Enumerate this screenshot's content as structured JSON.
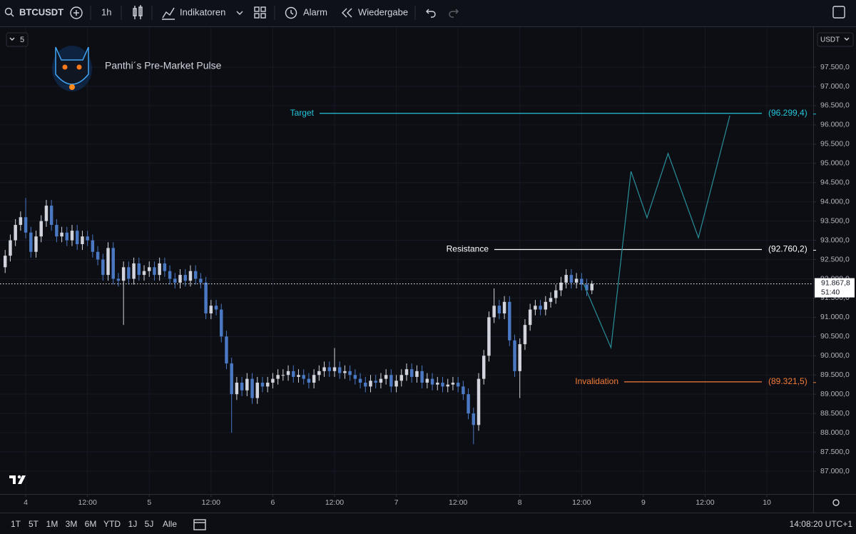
{
  "toolbar": {
    "symbol": "BTCUSDT",
    "interval": "1h",
    "indicators": "Indikatoren",
    "alert": "Alarm",
    "replay": "Wiedergabe"
  },
  "chart_header": {
    "interval_count": "5",
    "currency": "USDT"
  },
  "bottom_bar": {
    "ranges": [
      "1T",
      "5T",
      "1M",
      "3M",
      "6M",
      "YTD",
      "1J",
      "5J",
      "Alle"
    ],
    "clock": "14:08:20 UTC+1"
  },
  "chart_data": {
    "type": "candlestick",
    "title": "Panthi´s Pre-Market Pulse",
    "up_color": "#d1d4dc",
    "down_color": "#4a78c2",
    "grid": true,
    "x": [
      -4,
      -3,
      -2,
      -1,
      0,
      1,
      2,
      3,
      4,
      5,
      6,
      7,
      8,
      9,
      10,
      11,
      12,
      13,
      14,
      15,
      16,
      17,
      18,
      19,
      20,
      21,
      22,
      23,
      24,
      25,
      26,
      27,
      28,
      29,
      30,
      31,
      32,
      33,
      34,
      35,
      36,
      37,
      38,
      39,
      40,
      41,
      42,
      43,
      44,
      45,
      46,
      47,
      48,
      49,
      50,
      51,
      52,
      53,
      54,
      55,
      56,
      57,
      58,
      59,
      60,
      61,
      62,
      63,
      64,
      65,
      66,
      67,
      68,
      69,
      70,
      71,
      72,
      73,
      74,
      75,
      76,
      77,
      78,
      79,
      80,
      81,
      82,
      83,
      84,
      85,
      86,
      87,
      88,
      89,
      90,
      91,
      92,
      93,
      94,
      95,
      96,
      97,
      98,
      99,
      100,
      101,
      102,
      103,
      104,
      105,
      106,
      107,
      108,
      109,
      110
    ],
    "open": [
      92300,
      92600,
      93000,
      93400,
      93600,
      93200,
      92700,
      93100,
      93500,
      93900,
      93400,
      93100,
      93200,
      93000,
      93250,
      92900,
      93100,
      93000,
      92700,
      92500,
      92100,
      92800,
      92000,
      91950,
      92300,
      92000,
      92400,
      92100,
      92200,
      92300,
      92100,
      92400,
      92200,
      92000,
      91900,
      92100,
      91950,
      92200,
      92000,
      91900,
      91100,
      91300,
      91200,
      90500,
      89800,
      89000,
      89300,
      89100,
      89400,
      88900,
      89300,
      89200,
      89300,
      89400,
      89500,
      89500,
      89600,
      89450,
      89500,
      89400,
      89300,
      89500,
      89600,
      89700,
      89600,
      89700,
      89550,
      89600,
      89500,
      89400,
      89300,
      89200,
      89350,
      89300,
      89400,
      89500,
      89200,
      89350,
      89500,
      89650,
      89450,
      89600,
      89300,
      89400,
      89250,
      89300,
      89200,
      89250,
      89300,
      89200,
      89000,
      88500,
      88200,
      89400,
      90000,
      91000,
      91300,
      91100,
      91400,
      90400,
      89600,
      90300,
      90800,
      91200,
      91300,
      91200,
      91400,
      91500,
      91700,
      91900,
      92100,
      91900,
      92000,
      91850,
      91700
    ],
    "close": [
      92600,
      93000,
      93400,
      93600,
      93200,
      92700,
      93100,
      93500,
      93900,
      93400,
      93100,
      93200,
      93000,
      93250,
      92900,
      93100,
      93000,
      92700,
      92500,
      92100,
      92800,
      92000,
      91950,
      92300,
      92000,
      92400,
      92100,
      92200,
      92300,
      92100,
      92400,
      92200,
      92000,
      91900,
      92100,
      91950,
      92200,
      92000,
      91900,
      91100,
      91300,
      91200,
      90500,
      89800,
      89000,
      89300,
      89100,
      89400,
      88900,
      89300,
      89200,
      89300,
      89400,
      89500,
      89500,
      89600,
      89450,
      89500,
      89400,
      89300,
      89500,
      89600,
      89700,
      89600,
      89700,
      89550,
      89600,
      89500,
      89400,
      89300,
      89200,
      89350,
      89300,
      89400,
      89500,
      89200,
      89350,
      89500,
      89650,
      89450,
      89600,
      89300,
      89400,
      89250,
      89300,
      89200,
      89250,
      89300,
      89200,
      89000,
      88500,
      88200,
      89400,
      90000,
      91000,
      91300,
      91100,
      91400,
      90400,
      89600,
      90300,
      90800,
      91200,
      91300,
      91200,
      91400,
      91500,
      91700,
      91900,
      92100,
      91900,
      92000,
      91850,
      91700,
      91867.8
    ],
    "high": [
      92750,
      93150,
      93550,
      93750,
      94100,
      93350,
      93250,
      93650,
      94050,
      94050,
      93550,
      93350,
      93350,
      93400,
      93400,
      93250,
      93250,
      93150,
      92850,
      92650,
      92950,
      92950,
      92150,
      92450,
      92450,
      92550,
      92550,
      92350,
      92450,
      92450,
      92550,
      92550,
      92350,
      92150,
      92250,
      92250,
      92350,
      92350,
      92150,
      92050,
      91450,
      91450,
      91350,
      90650,
      89950,
      89450,
      89450,
      89550,
      89550,
      89450,
      89450,
      89450,
      89550,
      89650,
      89650,
      89750,
      89750,
      89650,
      89650,
      89550,
      89650,
      89750,
      89850,
      89850,
      90200,
      89850,
      89750,
      89750,
      89650,
      89550,
      89450,
      89500,
      89500,
      89550,
      89650,
      89650,
      89500,
      89650,
      89800,
      89800,
      89750,
      89750,
      89550,
      89550,
      89450,
      89450,
      89400,
      89450,
      89450,
      89350,
      89150,
      88650,
      89550,
      90150,
      91150,
      91750,
      91450,
      91550,
      91550,
      90550,
      90450,
      90950,
      91350,
      91450,
      91450,
      91550,
      91650,
      91850,
      92050,
      92250,
      92250,
      92150,
      92150,
      92000,
      91950
    ],
    "low": [
      92150,
      92450,
      92850,
      93250,
      93050,
      92550,
      92550,
      92950,
      93350,
      93250,
      92950,
      92950,
      92850,
      92850,
      92750,
      92750,
      92850,
      92550,
      92350,
      91950,
      91950,
      91850,
      91800,
      90800,
      91850,
      91850,
      91950,
      91950,
      92050,
      91950,
      91950,
      92050,
      91850,
      91750,
      91750,
      91800,
      91800,
      91850,
      91750,
      90950,
      90950,
      91050,
      90350,
      89650,
      88000,
      88850,
      88950,
      88950,
      88750,
      88750,
      89050,
      89050,
      89150,
      89250,
      89350,
      89350,
      89300,
      89300,
      89250,
      89150,
      89150,
      89350,
      89450,
      89450,
      89450,
      89400,
      89400,
      89350,
      89250,
      89150,
      89050,
      89050,
      89150,
      89150,
      89250,
      89050,
      89050,
      89200,
      89350,
      89300,
      89300,
      89150,
      89150,
      89100,
      89100,
      89050,
      89050,
      89100,
      89050,
      88850,
      88350,
      87700,
      88050,
      89250,
      89850,
      90850,
      90950,
      90950,
      90250,
      89450,
      88900,
      90150,
      90650,
      91050,
      91050,
      91050,
      91250,
      91350,
      91550,
      91750,
      91750,
      91750,
      91700,
      91550,
      91600
    ],
    "xlim": [
      -5,
      153
    ],
    "xticks": [
      {
        "value": 0,
        "label": "4"
      },
      {
        "value": 12,
        "label": "12:00"
      },
      {
        "value": 24,
        "label": "5"
      },
      {
        "value": 36,
        "label": "12:00"
      },
      {
        "value": 48,
        "label": "6"
      },
      {
        "value": 60,
        "label": "12:00"
      },
      {
        "value": 72,
        "label": "7"
      },
      {
        "value": 84,
        "label": "12:00"
      },
      {
        "value": 96,
        "label": "8"
      },
      {
        "value": 108,
        "label": "12:00"
      },
      {
        "value": 120,
        "label": "9"
      },
      {
        "value": 132,
        "label": "12:00"
      },
      {
        "value": 144,
        "label": "10"
      }
    ],
    "ylim": [
      86443,
      98466
    ],
    "yticks": [
      {
        "value": 87000,
        "label": "87.000,0"
      },
      {
        "value": 87500,
        "label": "87.500,0"
      },
      {
        "value": 88000,
        "label": "88.000,0"
      },
      {
        "value": 88500,
        "label": "88.500,0"
      },
      {
        "value": 89000,
        "label": "89.000,0"
      },
      {
        "value": 89500,
        "label": "89.500,0"
      },
      {
        "value": 90000,
        "label": "90.000,0"
      },
      {
        "value": 90500,
        "label": "90.500,0"
      },
      {
        "value": 91000,
        "label": "91.000,0"
      },
      {
        "value": 91500,
        "label": "91.500,0"
      },
      {
        "value": 92000,
        "label": "92.000,0"
      },
      {
        "value": 92500,
        "label": "92.500,0"
      },
      {
        "value": 93000,
        "label": "93.000,0"
      },
      {
        "value": 93500,
        "label": "93.500,0"
      },
      {
        "value": 94000,
        "label": "94.000,0"
      },
      {
        "value": 94500,
        "label": "94.500,0"
      },
      {
        "value": 95000,
        "label": "95.000,0"
      },
      {
        "value": 95500,
        "label": "95.500,0"
      },
      {
        "value": 96000,
        "label": "96.000,0"
      },
      {
        "value": 96500,
        "label": "96.500,0"
      },
      {
        "value": 97000,
        "label": "97.000,0"
      },
      {
        "value": 97500,
        "label": "97.500,0"
      }
    ],
    "levels": [
      {
        "name": "Target",
        "value": 96299.4,
        "value_label": "(96.299,4)",
        "color": "#26c6da"
      },
      {
        "name": "Resistance",
        "value": 92760.2,
        "value_label": "(92.760,2)",
        "color": "#ffffff"
      },
      {
        "name": "Invalidation",
        "value": 89321.5,
        "value_label": "(89.321,5)",
        "color": "#f57c36"
      }
    ],
    "current_price": {
      "value": 91867.8,
      "label": "91.867,8",
      "countdown": "51:40"
    },
    "projection": {
      "color": "#2a8f99",
      "x": [
        108.4,
        113.7,
        117.6,
        120.7,
        124.8,
        130.7,
        136.8
      ],
      "y": [
        91867.8,
        90210,
        94792,
        93586,
        95256,
        93067,
        96239
      ]
    }
  }
}
